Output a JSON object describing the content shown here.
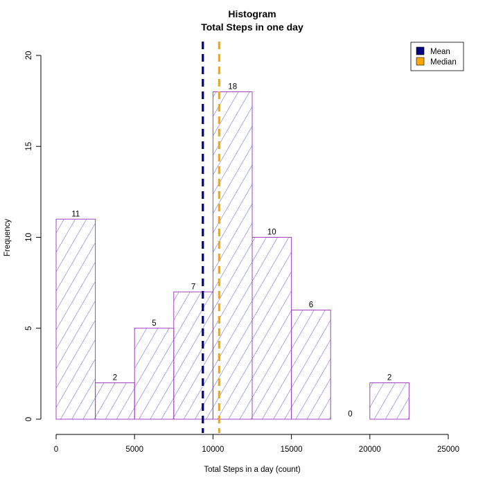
{
  "chart_data": {
    "type": "bar",
    "title": [
      "Histogram",
      "Total Steps in one day"
    ],
    "xlabel": "Total Steps in a day (count)",
    "ylabel": "Frequency",
    "xlim": [
      0,
      25000
    ],
    "ylim": [
      0,
      20
    ],
    "x_ticks": [
      0,
      5000,
      10000,
      15000,
      20000,
      25000
    ],
    "y_ticks": [
      0,
      5,
      10,
      15,
      20
    ],
    "bins": [
      {
        "start": 0,
        "end": 2500,
        "count": 11
      },
      {
        "start": 2500,
        "end": 5000,
        "count": 2
      },
      {
        "start": 5000,
        "end": 7500,
        "count": 5
      },
      {
        "start": 7500,
        "end": 10000,
        "count": 7
      },
      {
        "start": 10000,
        "end": 12500,
        "count": 18
      },
      {
        "start": 12500,
        "end": 15000,
        "count": 10
      },
      {
        "start": 15000,
        "end": 17500,
        "count": 6
      },
      {
        "start": 17500,
        "end": 20000,
        "count": 0
      },
      {
        "start": 20000,
        "end": 22500,
        "count": 2
      }
    ],
    "bar_border_color": "#a040c0",
    "hatch_color": "#3030e0",
    "reference_lines": [
      {
        "name": "Mean",
        "value": 9354,
        "color": "#000080"
      },
      {
        "name": "Median",
        "value": 10395,
        "color": "#ffa500"
      }
    ],
    "legend_position": "top-right",
    "grid": false
  }
}
